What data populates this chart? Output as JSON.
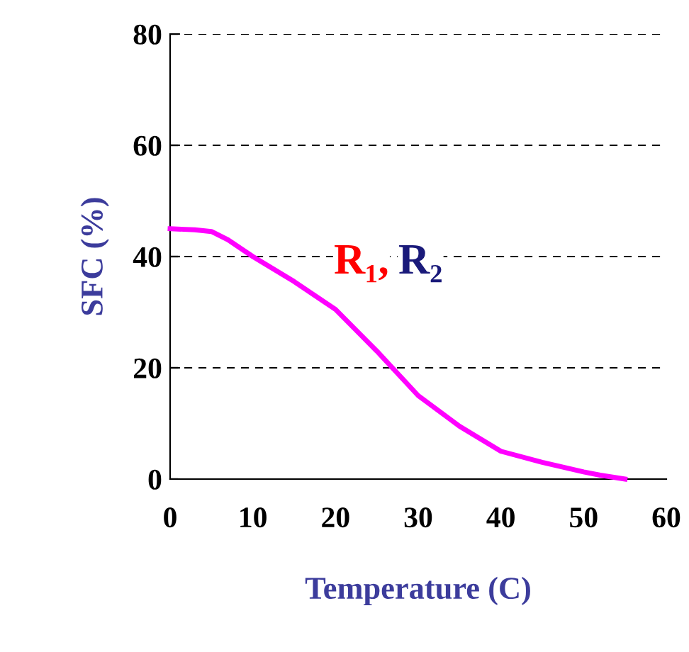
{
  "chart_data": {
    "type": "line",
    "xlabel": "Temperature (C)",
    "ylabel": "SFC (%)",
    "x": [
      0,
      3,
      5,
      7,
      10,
      15,
      20,
      25,
      30,
      35,
      40,
      45,
      50,
      52,
      55
    ],
    "series": [
      {
        "color": "#ff00ff",
        "values": [
          45,
          44.8,
          44.5,
          43,
          40,
          35.5,
          30.5,
          23,
          15,
          9.5,
          5,
          3,
          1.3,
          0.7,
          0
        ]
      }
    ],
    "xlim": [
      0,
      60
    ],
    "xticks": [
      0,
      10,
      20,
      30,
      40,
      50,
      60
    ],
    "ylim": [
      0,
      80
    ],
    "yticks": [
      0,
      20,
      40,
      60,
      80
    ],
    "grid": "y",
    "marker": "none",
    "line_style": "solid",
    "annotations": [
      "R₁,",
      "R₂"
    ]
  }
}
